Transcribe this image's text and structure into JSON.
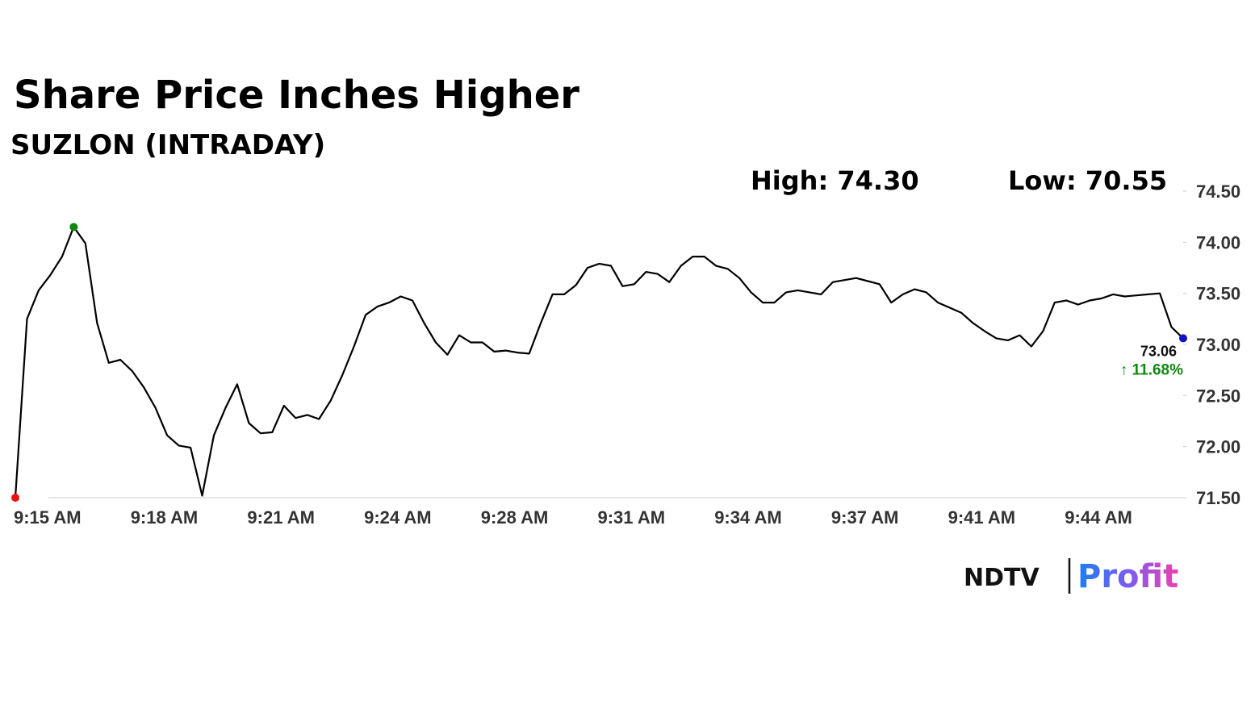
{
  "chart_data": {
    "type": "line",
    "title": "Share Price Inches Higher",
    "subtitle": "SUZLON (INTRADAY)",
    "annotations": {
      "high": "High: 74.30",
      "low": "Low: 70.55",
      "last_price": "73.06",
      "change": "↑ 11.68%"
    },
    "categories": [
      "9:15 AM",
      null,
      null,
      null,
      null,
      null,
      null,
      null,
      null,
      null,
      "9:18 AM",
      null,
      null,
      null,
      null,
      null,
      null,
      null,
      null,
      null,
      "9:21 AM",
      null,
      null,
      null,
      null,
      null,
      null,
      null,
      null,
      null,
      "9:24 AM",
      null,
      null,
      null,
      null,
      null,
      null,
      null,
      null,
      null,
      "9:28 AM",
      null,
      null,
      null,
      null,
      null,
      null,
      null,
      null,
      null,
      "9:31 AM",
      null,
      null,
      null,
      null,
      null,
      null,
      null,
      null,
      null,
      "9:34 AM",
      null,
      null,
      null,
      null,
      null,
      null,
      null,
      null,
      null,
      "9:37 AM",
      null,
      null,
      null,
      null,
      null,
      null,
      null,
      null,
      null,
      "9:41 AM",
      null,
      null,
      null,
      null,
      null,
      null,
      null,
      null,
      null,
      "9:44 AM",
      null,
      null,
      null,
      null,
      null,
      null,
      null,
      null,
      null,
      null
    ],
    "values": [
      71.5,
      73.25,
      73.53,
      73.68,
      73.86,
      74.15,
      73.99,
      73.21,
      72.82,
      72.85,
      72.74,
      72.58,
      72.38,
      72.11,
      72.01,
      71.99,
      71.52,
      72.11,
      72.38,
      72.61,
      72.23,
      72.13,
      72.14,
      72.4,
      72.28,
      72.31,
      72.27,
      72.45,
      72.7,
      72.98,
      73.29,
      73.37,
      73.41,
      73.47,
      73.43,
      73.21,
      73.02,
      72.9,
      73.09,
      73.02,
      73.02,
      72.93,
      72.94,
      72.92,
      72.91,
      73.21,
      73.49,
      73.49,
      73.58,
      73.75,
      73.79,
      73.77,
      73.57,
      73.59,
      73.71,
      73.69,
      73.61,
      73.77,
      73.86,
      73.86,
      73.77,
      73.74,
      73.65,
      73.51,
      73.41,
      73.41,
      73.51,
      73.53,
      73.51,
      73.49,
      73.61,
      73.63,
      73.65,
      73.62,
      73.59,
      73.41,
      73.49,
      73.54,
      73.51,
      73.41,
      73.36,
      73.31,
      73.21,
      73.13,
      73.06,
      73.04,
      73.09,
      72.98,
      73.13,
      73.41,
      73.43,
      73.39,
      73.43,
      73.45,
      73.49,
      73.47,
      73.48,
      73.49,
      73.5,
      73.17,
      73.06
    ],
    "color": "#000000",
    "marker_colors": {
      "start": "#ee1111",
      "high": "#118811",
      "end": "#1111cc"
    },
    "change_color": "#118811",
    "ylim": [
      71.5,
      74.5
    ],
    "yticks": [
      {
        "value": 71.5,
        "label": "71.50"
      },
      {
        "value": 72,
        "label": "72.00"
      },
      {
        "value": 72.5,
        "label": "72.50"
      },
      {
        "value": 73,
        "label": "73.00"
      },
      {
        "value": 73.5,
        "label": "73.50"
      },
      {
        "value": 74,
        "label": "74.00"
      },
      {
        "value": 74.5,
        "label": "74.50"
      }
    ],
    "grid": false
  },
  "logo": {
    "left": "NDTV",
    "right": "Profit"
  }
}
